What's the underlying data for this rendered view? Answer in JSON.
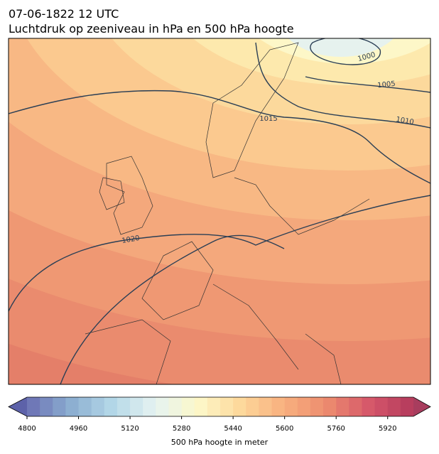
{
  "header": {
    "time": "07-06-1822 12 UTC",
    "subtitle": "Luchtdruk op zeeniveau in hPa en 500 hPa hoogte"
  },
  "isobar_labels": [
    1000,
    1005,
    1010,
    1015,
    1020
  ],
  "colorbar": {
    "label": "500 hPa hoogte in meter",
    "lim": [
      4800,
      6000
    ],
    "step": 40,
    "ticks": [
      4800,
      4960,
      5120,
      5280,
      5440,
      5600,
      5760,
      5920
    ],
    "colors": [
      "#6a6fb3",
      "#8badd0",
      "#b4d8e8",
      "#e6f3f1",
      "#fdf8c8",
      "#fdd79a",
      "#f8af7e",
      "#ec8b6e",
      "#d5566a",
      "#b33a5c"
    ],
    "under_color": "#5d62a9",
    "over_color": "#a83d5e"
  }
}
